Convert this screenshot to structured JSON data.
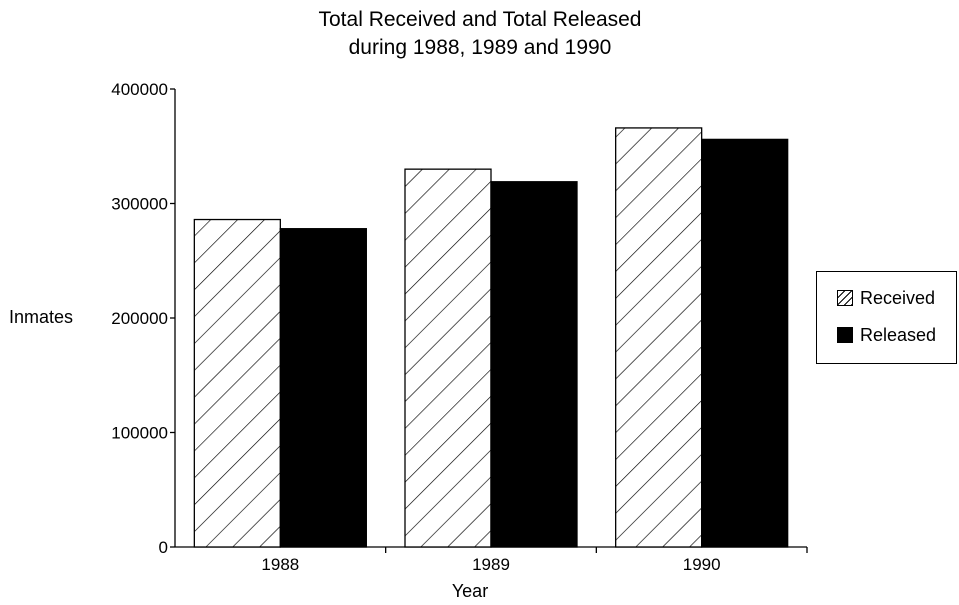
{
  "chart_data": {
    "type": "bar",
    "title": "Total Received and Total Released",
    "subtitle": "during 1988, 1989 and 1990",
    "xlabel": "Year",
    "ylabel": "Inmates",
    "categories": [
      "1988",
      "1989",
      "1990"
    ],
    "ylim": [
      0,
      400000
    ],
    "yticks": [
      0,
      100000,
      200000,
      300000,
      400000
    ],
    "ytick_labels": [
      "0",
      "100000",
      "200000",
      "300000",
      "400000"
    ],
    "grid": false,
    "legend_position": "right",
    "series": [
      {
        "name": "Received",
        "values": [
          286000,
          330000,
          366000
        ],
        "fill": "hatched",
        "color": "#ffffff"
      },
      {
        "name": "Released",
        "values": [
          278000,
          319000,
          356000
        ],
        "fill": "solid",
        "color": "#000000"
      }
    ]
  }
}
